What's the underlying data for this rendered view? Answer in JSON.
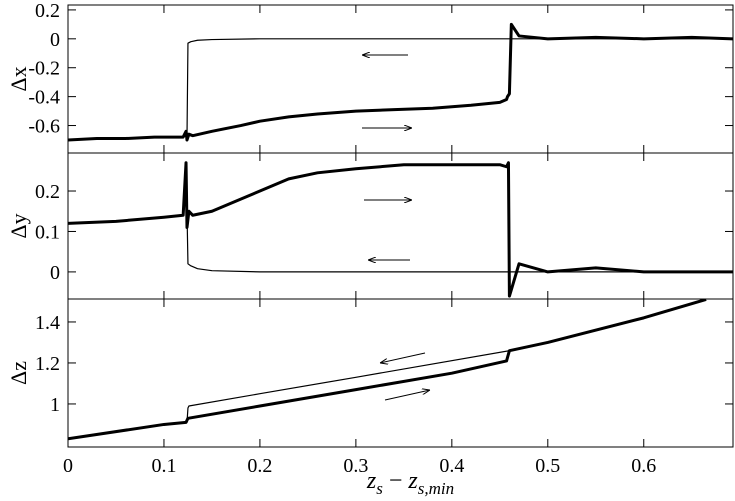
{
  "chart_data": [
    {
      "type": "line",
      "ylabel": "Δx",
      "xlim": [
        0,
        0.693
      ],
      "ylim": [
        -0.79,
        0.234
      ],
      "xticks": [
        0,
        0.1,
        0.2,
        0.3,
        0.4,
        0.5,
        0.6
      ],
      "yticks": [
        0.2,
        0,
        -0.2,
        -0.4,
        -0.6
      ],
      "series": [
        {
          "color": "#000000",
          "x": [
            0,
            0.03,
            0.06,
            0.09,
            0.12,
            0.123,
            0.124,
            0.126,
            0.13,
            0.15,
            0.18,
            0.2,
            0.23,
            0.26,
            0.3,
            0.34,
            0.38,
            0.42,
            0.45,
            0.457,
            0.458,
            0.46,
            0.462,
            0.47,
            0.5,
            0.55,
            0.6,
            0.65,
            0.693
          ],
          "values": [
            -0.7,
            -0.69,
            -0.69,
            -0.68,
            -0.68,
            -0.64,
            -0.7,
            -0.66,
            -0.67,
            -0.64,
            -0.6,
            -0.57,
            -0.54,
            -0.52,
            -0.5,
            -0.49,
            -0.48,
            -0.46,
            -0.44,
            -0.42,
            -0.4,
            -0.38,
            0.1,
            0.02,
            0,
            0.01,
            0,
            0.01,
            0
          ]
        },
        {
          "color": "#000000",
          "x": [
            0.693,
            0.46,
            0.3,
            0.2,
            0.15,
            0.135,
            0.128,
            0.125,
            0.124
          ],
          "values": [
            0,
            0,
            0,
            0,
            -0.005,
            -0.01,
            -0.02,
            -0.03,
            -0.68
          ]
        }
      ]
    },
    {
      "type": "line",
      "ylabel": "Δy",
      "xlim": [
        0,
        0.693
      ],
      "ylim": [
        -0.067,
        0.294
      ],
      "xticks": [
        0,
        0.1,
        0.2,
        0.3,
        0.4,
        0.5,
        0.6
      ],
      "yticks": [
        0,
        0.1,
        0.2
      ],
      "series": [
        {
          "color": "#000000",
          "x": [
            0,
            0.05,
            0.1,
            0.12,
            0.123,
            0.124,
            0.126,
            0.13,
            0.15,
            0.18,
            0.2,
            0.23,
            0.26,
            0.3,
            0.35,
            0.4,
            0.45,
            0.457,
            0.459,
            0.46,
            0.47,
            0.5,
            0.55,
            0.6,
            0.65,
            0.693
          ],
          "values": [
            0.12,
            0.125,
            0.135,
            0.14,
            0.27,
            0.11,
            0.15,
            0.14,
            0.15,
            0.18,
            0.2,
            0.23,
            0.245,
            0.255,
            0.265,
            0.265,
            0.265,
            0.26,
            0.27,
            -0.06,
            0.02,
            0,
            0.01,
            0,
            0,
            0
          ]
        },
        {
          "color": "#000000",
          "x": [
            0.693,
            0.46,
            0.3,
            0.2,
            0.15,
            0.135,
            0.128,
            0.125,
            0.124
          ],
          "values": [
            0,
            0,
            0,
            0,
            0.003,
            0.008,
            0.015,
            0.02,
            0.15
          ]
        }
      ]
    },
    {
      "type": "line",
      "ylabel": "Δz",
      "xlabel": [
        "z",
        "s",
        " − ",
        "z",
        "s,min"
      ],
      "xlim": [
        0,
        0.693
      ],
      "ylim": [
        0.79,
        1.512
      ],
      "xticks": [
        0,
        0.1,
        0.2,
        0.3,
        0.4,
        0.5,
        0.6
      ],
      "yticks": [
        1,
        1.2,
        1.4
      ],
      "series": [
        {
          "color": "#000000",
          "x": [
            0,
            0.1,
            0.123,
            0.125,
            0.2,
            0.3,
            0.4,
            0.457,
            0.46,
            0.5,
            0.6,
            0.665
          ],
          "values": [
            0.83,
            0.9,
            0.91,
            0.93,
            0.99,
            1.07,
            1.15,
            1.21,
            1.26,
            1.3,
            1.42,
            1.51
          ]
        },
        {
          "color": "#000000",
          "x": [
            0.46,
            0.3,
            0.2,
            0.126,
            0.125,
            0.124
          ],
          "values": [
            1.26,
            1.13,
            1.05,
            0.99,
            0.98,
            0.91
          ]
        }
      ]
    }
  ]
}
